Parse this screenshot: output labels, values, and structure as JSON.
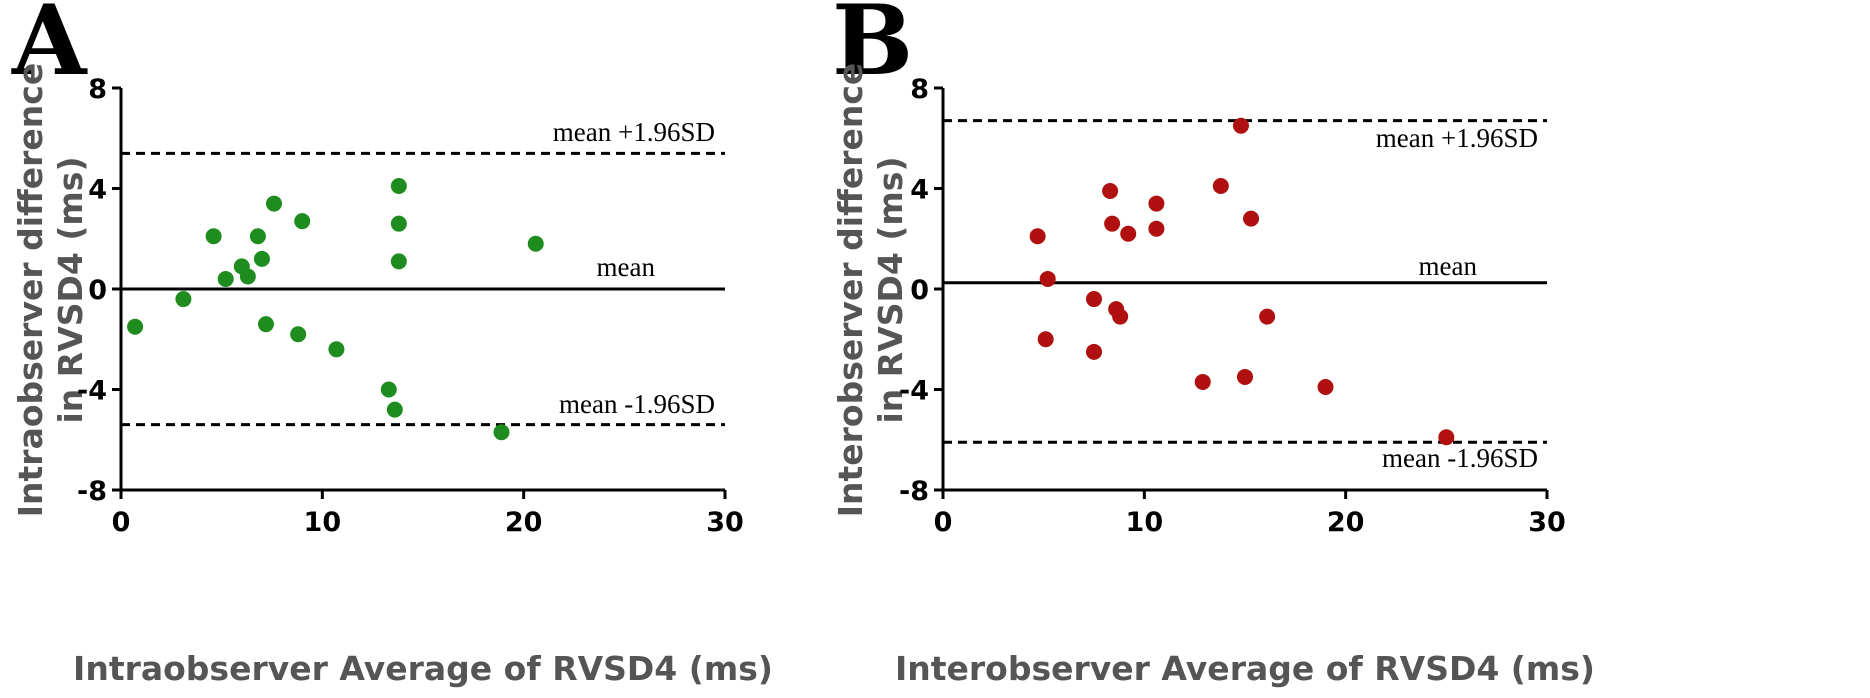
{
  "chart_data": [
    {
      "type": "scatter",
      "panel_label": "A",
      "xlabel": "Intraobserver Average of RVSD4 (ms)",
      "ylabel": [
        "Intraobserver difference",
        "in RVSD4 (ms)"
      ],
      "xlim": [
        0,
        30
      ],
      "ylim": [
        -8,
        8
      ],
      "xticks": [
        "0",
        "10",
        "20",
        "30"
      ],
      "yticks": [
        "8",
        "4",
        "0",
        "-4",
        "-8"
      ],
      "point_color": "#1e8c1e",
      "mean": 0,
      "upper_loa": 5.4,
      "lower_loa": -5.4,
      "annotations": {
        "upper": "mean +1.96SD",
        "mean": "mean",
        "lower": "mean -1.96SD"
      },
      "points": [
        {
          "x": 0.7,
          "y": -1.5
        },
        {
          "x": 3.1,
          "y": -0.4
        },
        {
          "x": 4.6,
          "y": 2.1
        },
        {
          "x": 5.2,
          "y": 0.4
        },
        {
          "x": 6.0,
          "y": 0.9
        },
        {
          "x": 6.3,
          "y": 0.5
        },
        {
          "x": 6.8,
          "y": 2.1
        },
        {
          "x": 7.0,
          "y": 1.2
        },
        {
          "x": 7.2,
          "y": -1.4
        },
        {
          "x": 7.6,
          "y": 3.4
        },
        {
          "x": 8.8,
          "y": -1.8
        },
        {
          "x": 9.0,
          "y": 2.7
        },
        {
          "x": 10.7,
          "y": -2.4
        },
        {
          "x": 13.3,
          "y": -4.0
        },
        {
          "x": 13.6,
          "y": -4.8
        },
        {
          "x": 13.8,
          "y": 4.1
        },
        {
          "x": 13.8,
          "y": 2.6
        },
        {
          "x": 13.8,
          "y": 1.1
        },
        {
          "x": 18.9,
          "y": -5.7
        },
        {
          "x": 20.6,
          "y": 1.8
        }
      ]
    },
    {
      "type": "scatter",
      "panel_label": "B",
      "xlabel": "Interobserver Average of RVSD4 (ms)",
      "ylabel": [
        "Interobserver difference",
        "in RVSD4 (ms)"
      ],
      "xlim": [
        0,
        30
      ],
      "ylim": [
        -8,
        8
      ],
      "xticks": [
        "0",
        "10",
        "20",
        "30"
      ],
      "yticks": [
        "8",
        "4",
        "0",
        "-4",
        "-8"
      ],
      "point_color": "#b01010",
      "mean": 0.25,
      "upper_loa": 6.7,
      "lower_loa": -6.1,
      "annotations": {
        "upper": "mean +1.96SD",
        "mean": "mean",
        "lower": "mean -1.96SD"
      },
      "points": [
        {
          "x": 4.7,
          "y": 2.1
        },
        {
          "x": 5.1,
          "y": -2.0
        },
        {
          "x": 5.2,
          "y": 0.4
        },
        {
          "x": 7.5,
          "y": -0.4
        },
        {
          "x": 7.5,
          "y": -2.5
        },
        {
          "x": 8.3,
          "y": 3.9
        },
        {
          "x": 8.4,
          "y": 2.6
        },
        {
          "x": 8.6,
          "y": -0.8
        },
        {
          "x": 8.8,
          "y": -1.1
        },
        {
          "x": 9.2,
          "y": 2.2
        },
        {
          "x": 10.6,
          "y": 3.4
        },
        {
          "x": 10.6,
          "y": 2.4
        },
        {
          "x": 12.9,
          "y": -3.7
        },
        {
          "x": 13.8,
          "y": 4.1
        },
        {
          "x": 14.8,
          "y": 6.5
        },
        {
          "x": 15.0,
          "y": -3.5
        },
        {
          "x": 15.3,
          "y": 2.8
        },
        {
          "x": 16.1,
          "y": -1.1
        },
        {
          "x": 19.0,
          "y": -3.9
        },
        {
          "x": 25.0,
          "y": -5.9
        }
      ]
    }
  ]
}
